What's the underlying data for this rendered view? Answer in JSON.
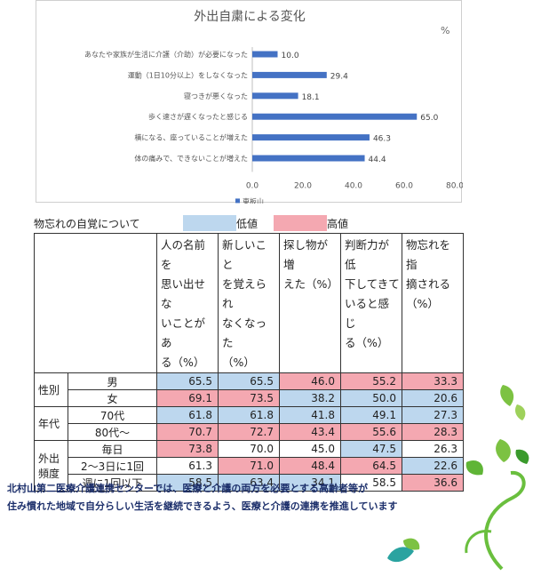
{
  "chart_data": {
    "type": "bar",
    "orientation": "horizontal",
    "title": "外出自粛による変化",
    "unit": "%",
    "categories": [
      "あなたや家族が生活に介護（介助）が必要になった",
      "運動（1日10分以上）をしなくなった",
      "寝つきが悪くなった",
      "歩く速さが遅くなったと感じる",
      "横になる、座っていることが増えた",
      "体の痛みで、できないことが増えた"
    ],
    "series": [
      {
        "name": "東板山",
        "values": [
          10.0,
          29.4,
          18.1,
          65.0,
          46.3,
          44.4
        ],
        "labels": [
          "10.0",
          "29.4",
          "18.1",
          "65.0",
          "46.3",
          "44.4"
        ]
      }
    ],
    "xlim": [
      0,
      80
    ],
    "ticks": [
      "0.0",
      "20.0",
      "40.0",
      "60.0",
      "80.0"
    ],
    "grid": false,
    "legend_position": "bottom-left",
    "bar_color": "#4472c4"
  },
  "table": {
    "caption": "物忘れの自覚について",
    "legend_low": "低値",
    "legend_high": "高値",
    "colors": {
      "low": "#bdd7ee",
      "high": "#f4a8b1"
    },
    "headers": [
      [
        "人の名前を",
        "思い出せな",
        "いことがあ",
        "る（%）"
      ],
      [
        "新しいこと",
        "を覚えられ",
        "なくなった",
        "（%）"
      ],
      [
        "探し物が増",
        "えた（%）"
      ],
      [
        "判断力が低",
        "下してきて",
        "いると感じ",
        "る（%）"
      ],
      [
        "物忘れを指",
        "摘される",
        "（%）"
      ]
    ],
    "groups": [
      {
        "label_lines": [
          "性別"
        ],
        "rows": [
          {
            "label": "男",
            "values": [
              "65.5",
              "65.5",
              "46.0",
              "55.2",
              "33.3"
            ],
            "shade": [
              "low",
              "low",
              "high",
              "high",
              "high"
            ]
          },
          {
            "label": "女",
            "values": [
              "69.1",
              "73.5",
              "38.2",
              "50.0",
              "20.6"
            ],
            "shade": [
              "high",
              "high",
              "low",
              "low",
              "low"
            ]
          }
        ]
      },
      {
        "label_lines": [
          "年代"
        ],
        "rows": [
          {
            "label": "70代",
            "values": [
              "61.8",
              "61.8",
              "41.8",
              "49.1",
              "27.3"
            ],
            "shade": [
              "low",
              "low",
              "low",
              "low",
              "low"
            ]
          },
          {
            "label": "80代～",
            "values": [
              "70.7",
              "72.7",
              "43.4",
              "55.6",
              "28.3"
            ],
            "shade": [
              "high",
              "high",
              "high",
              "high",
              "high"
            ]
          }
        ]
      },
      {
        "label_lines": [
          "外出",
          "頻度"
        ],
        "rows": [
          {
            "label": "毎日",
            "values": [
              "73.8",
              "70.0",
              "45.0",
              "47.5",
              "26.3"
            ],
            "shade": [
              "high",
              "none",
              "none",
              "low",
              "none"
            ]
          },
          {
            "label": "2～3日に1回",
            "values": [
              "61.3",
              "71.0",
              "48.4",
              "64.5",
              "22.6"
            ],
            "shade": [
              "none",
              "high",
              "high",
              "high",
              "low"
            ]
          },
          {
            "label": "週に1回以下",
            "values": [
              "58.5",
              "63.4",
              "34.1",
              "58.5",
              "36.6"
            ],
            "shade": [
              "low",
              "low",
              "low",
              "none",
              "high"
            ]
          }
        ]
      }
    ]
  },
  "footer": {
    "line1": "北村山第二医療介護連携センターでは、医療と介護の両方を必要とする高齢者等が",
    "line2": "住み慣れた地域で自分らしい生活を継続できるよう、医療と介護の連携を推進しています"
  },
  "decor": {
    "leaf_color": "#7cc242",
    "leaf_dark": "#3a9a2c",
    "leaf_teal": "#2aa3a0"
  }
}
